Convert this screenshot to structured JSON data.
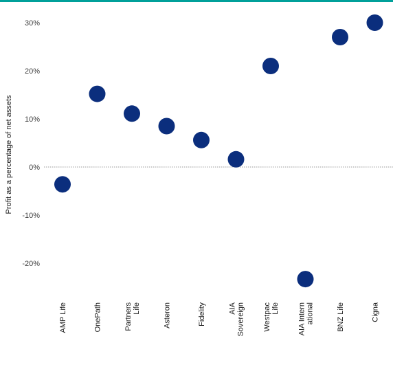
{
  "colors": {
    "accent": "#00a09a",
    "marker": "#0b2e7d",
    "zero_line": "#9a9a9a"
  },
  "chart_data": {
    "type": "scatter",
    "title": "",
    "xlabel": "",
    "ylabel": "Profit as a percentage of net assets",
    "ylim": [
      -27,
      32
    ],
    "yticks": [
      30,
      20,
      10,
      0,
      -10,
      -20
    ],
    "ytick_labels": [
      "30%",
      "20%",
      "10%",
      "0%",
      "-10%",
      "-20%"
    ],
    "grid": false,
    "zero_line": "dotted",
    "categories": [
      [
        "AMP Life"
      ],
      [
        "OnePath"
      ],
      [
        "Partners",
        "Life"
      ],
      [
        "Asteron"
      ],
      [
        "Fidelity"
      ],
      [
        "AIA",
        "Sovereign"
      ],
      [
        "Westpac",
        "Life"
      ],
      [
        "AIA Intern",
        "ational"
      ],
      [
        "BNZ Life"
      ],
      [
        "Cigna"
      ]
    ],
    "values": [
      -3.6,
      15.2,
      11.1,
      8.5,
      5.6,
      1.6,
      21.0,
      -23.3,
      27.0,
      30.0
    ]
  }
}
